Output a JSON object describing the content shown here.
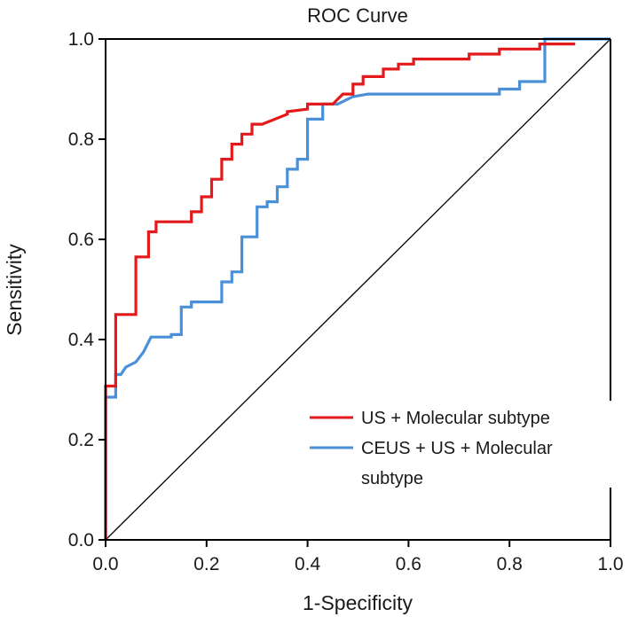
{
  "chart_data": {
    "type": "line",
    "title": "ROC Curve",
    "xlabel": "1-Specificity",
    "ylabel": "Sensitivity",
    "xlim": [
      0,
      1
    ],
    "ylim": [
      0,
      1
    ],
    "x_ticks": [
      "0.0",
      "0.2",
      "0.4",
      "0.6",
      "0.8",
      "1.0"
    ],
    "y_ticks": [
      "0.0",
      "0.2",
      "0.4",
      "0.6",
      "0.8",
      "1.0"
    ],
    "grid": false,
    "legend_position": "bottom-right",
    "reference_line": {
      "x": [
        0,
        1
      ],
      "y": [
        0,
        1
      ],
      "color": "#000000"
    },
    "series": [
      {
        "name": "US + Molecular subtype",
        "color": "#e31a1c",
        "x": [
          0,
          0,
          0.02,
          0.02,
          0.06,
          0.06,
          0.085,
          0.085,
          0.1,
          0.1,
          0.17,
          0.17,
          0.19,
          0.19,
          0.21,
          0.21,
          0.23,
          0.23,
          0.25,
          0.25,
          0.27,
          0.27,
          0.29,
          0.29,
          0.31,
          0.36,
          0.36,
          0.4,
          0.4,
          0.45,
          0.46,
          0.47,
          0.49,
          0.49,
          0.51,
          0.51,
          0.55,
          0.55,
          0.58,
          0.58,
          0.61,
          0.61,
          0.72,
          0.72,
          0.78,
          0.78,
          0.86,
          0.86,
          0.93
        ],
        "y": [
          0,
          0.307,
          0.307,
          0.45,
          0.45,
          0.565,
          0.565,
          0.615,
          0.615,
          0.635,
          0.635,
          0.655,
          0.655,
          0.685,
          0.685,
          0.72,
          0.72,
          0.76,
          0.76,
          0.79,
          0.79,
          0.81,
          0.81,
          0.83,
          0.83,
          0.85,
          0.855,
          0.86,
          0.87,
          0.87,
          0.88,
          0.89,
          0.89,
          0.91,
          0.91,
          0.925,
          0.925,
          0.94,
          0.94,
          0.95,
          0.95,
          0.96,
          0.96,
          0.97,
          0.97,
          0.98,
          0.98,
          0.99,
          0.99
        ]
      },
      {
        "name": "CEUS + US + Molecular subtype",
        "color": "#4a90d9",
        "x": [
          0,
          0,
          0.02,
          0.02,
          0.03,
          0.04,
          0.04,
          0.06,
          0.06,
          0.075,
          0.075,
          0.09,
          0.09,
          0.13,
          0.13,
          0.15,
          0.15,
          0.17,
          0.17,
          0.23,
          0.23,
          0.25,
          0.25,
          0.27,
          0.27,
          0.3,
          0.3,
          0.32,
          0.32,
          0.34,
          0.34,
          0.36,
          0.36,
          0.38,
          0.38,
          0.4,
          0.4,
          0.43,
          0.43,
          0.46,
          0.47,
          0.49,
          0.52,
          0.78,
          0.78,
          0.82,
          0.82,
          0.87,
          0.87,
          1.0
        ],
        "y": [
          0,
          0.285,
          0.285,
          0.33,
          0.33,
          0.345,
          0.345,
          0.355,
          0.355,
          0.375,
          0.375,
          0.405,
          0.405,
          0.405,
          0.41,
          0.41,
          0.465,
          0.465,
          0.475,
          0.475,
          0.515,
          0.515,
          0.535,
          0.535,
          0.605,
          0.605,
          0.665,
          0.665,
          0.675,
          0.675,
          0.705,
          0.705,
          0.74,
          0.74,
          0.76,
          0.76,
          0.84,
          0.84,
          0.87,
          0.87,
          0.875,
          0.885,
          0.89,
          0.89,
          0.9,
          0.9,
          0.915,
          0.915,
          1.0,
          1.0
        ]
      }
    ],
    "legend_text": {
      "entry1": "US + Molecular subtype",
      "entry2_line1": "CEUS + US + Molecular",
      "entry2_line2": "subtype"
    }
  }
}
